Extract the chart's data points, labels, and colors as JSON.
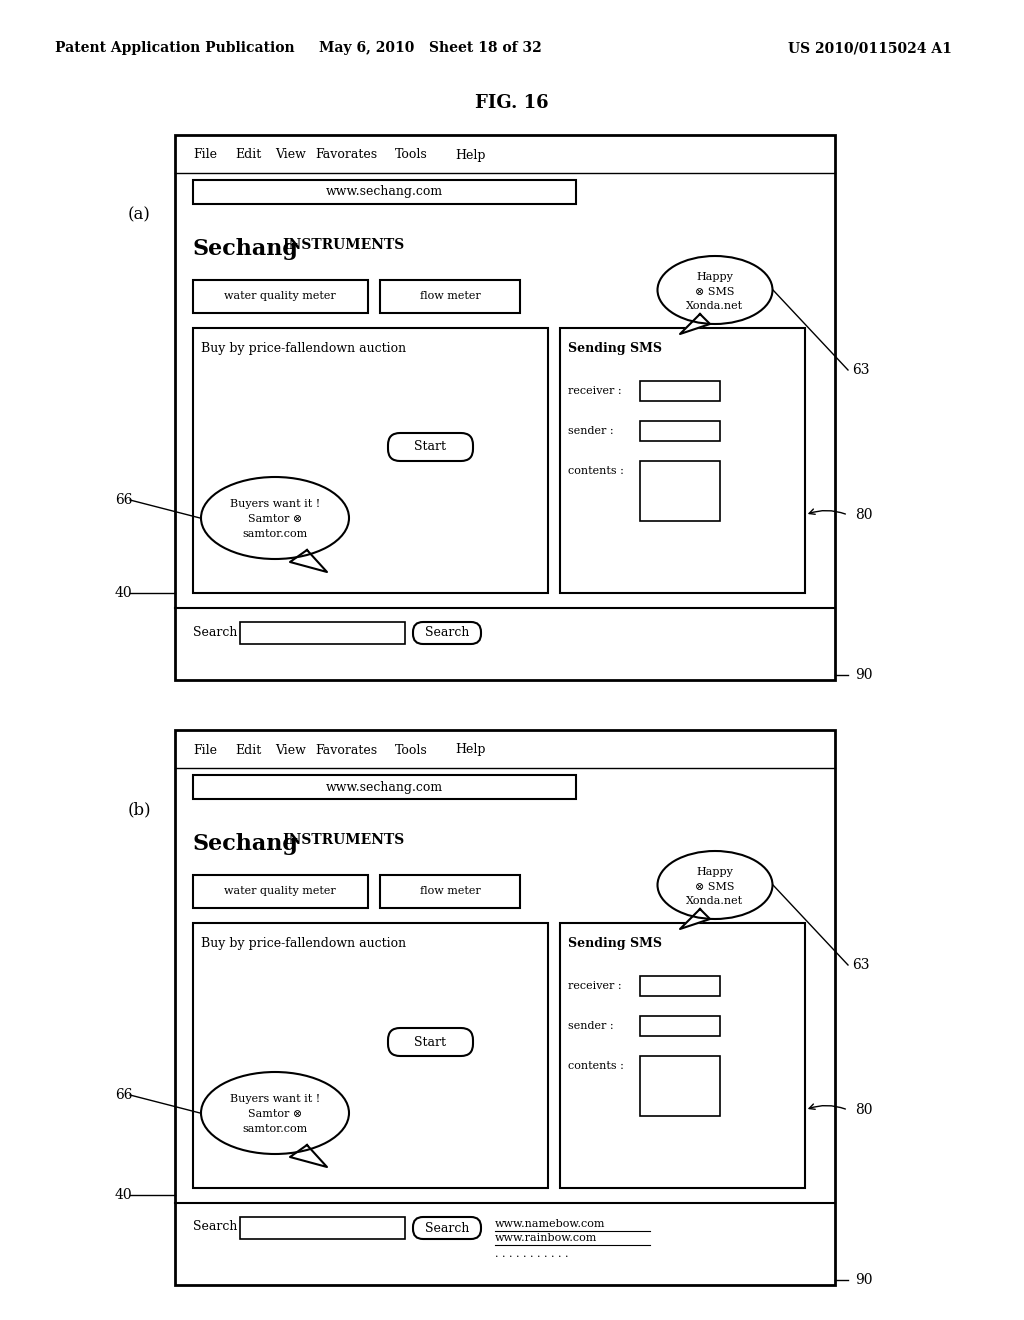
{
  "bg_color": "#ffffff",
  "header_left": "Patent Application Publication",
  "header_mid": "May 6, 2010   Sheet 18 of 32",
  "header_right": "US 2010/0115024 A1",
  "fig_title": "FIG. 16",
  "panel_a_label": "(a)",
  "panel_b_label": "(b)",
  "menu_items": [
    "File",
    "Edit",
    "View",
    "Favorates",
    "Tools",
    "Help"
  ],
  "url": "www.sechang.com",
  "brand_text": "Sechang",
  "brand_instruments": "INSTRUMENTS",
  "btn_water": "water quality meter",
  "btn_flow": "flow meter",
  "auction_text": "Buy by price-fallendown auction",
  "start_btn": "Start",
  "bubble_right_line1": "Happy",
  "bubble_right_line2": "⊗ SMS",
  "bubble_right_line3": "Xonda.net",
  "bubble_left_line1": "Buyers want it !",
  "bubble_left_line2": "Samtor ⊗",
  "bubble_left_line3": "samtor.com",
  "sms_title": "Sending SMS",
  "sms_receiver": "receiver :",
  "sms_sender": "sender :",
  "sms_contents": "contents :",
  "search_label": "Search",
  "search_btn": "Search",
  "label_63": "63",
  "label_66": "66",
  "label_40": "40",
  "label_80": "80",
  "label_90": "90",
  "search_results_b_line1": "www.namebow.com",
  "search_results_b_line2": "www.rainbow.com",
  "search_results_b_line3": ". . . . . . . . . . ."
}
